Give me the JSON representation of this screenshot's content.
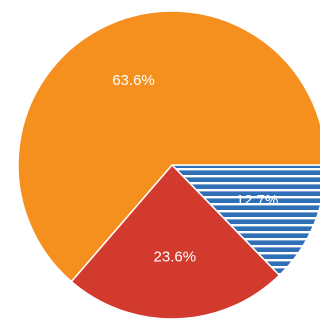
{
  "chart_data": {
    "type": "pie",
    "slices": [
      {
        "label": "12.7%",
        "value": 12.7,
        "color": "#2e6fb5",
        "pattern": "stripes"
      },
      {
        "label": "23.6%",
        "value": 23.6,
        "color": "#d23a2e"
      },
      {
        "label": "63.6%",
        "value": 63.6,
        "color": "#f5901e"
      }
    ],
    "start_angle_deg": 0,
    "direction": "clockwise",
    "stripe_color": "#ffffff"
  }
}
